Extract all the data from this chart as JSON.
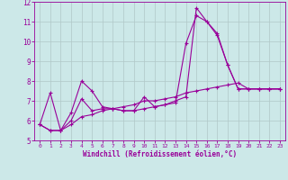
{
  "xlabel": "Windchill (Refroidissement éolien,°C)",
  "bg_color": "#cce8e8",
  "grid_color": "#b0c8c8",
  "line_color": "#990099",
  "xlim": [
    -0.5,
    23.5
  ],
  "ylim": [
    5,
    12
  ],
  "yticks": [
    5,
    6,
    7,
    8,
    9,
    10,
    11,
    12
  ],
  "xticks": [
    0,
    1,
    2,
    3,
    4,
    5,
    6,
    7,
    8,
    9,
    10,
    11,
    12,
    13,
    14,
    15,
    16,
    17,
    18,
    19,
    20,
    21,
    22,
    23
  ],
  "line1_x": [
    0,
    1,
    2,
    3,
    4,
    5,
    6,
    7,
    8,
    9,
    10,
    11,
    12,
    13,
    14,
    15,
    16,
    17,
    18,
    19,
    20,
    21,
    22,
    23
  ],
  "line1_y": [
    5.8,
    7.4,
    5.5,
    6.4,
    8.0,
    7.5,
    6.7,
    6.6,
    6.5,
    6.5,
    7.2,
    6.7,
    6.8,
    6.9,
    9.9,
    11.3,
    11.0,
    10.4,
    8.8,
    7.6,
    7.6,
    7.6,
    7.6,
    7.6
  ],
  "line2_x": [
    0,
    1,
    2,
    3,
    4,
    5,
    6,
    7,
    8,
    9,
    10,
    11,
    12,
    13,
    14,
    15,
    16,
    17,
    18,
    19,
    20,
    21,
    22,
    23
  ],
  "line2_y": [
    5.8,
    5.5,
    5.5,
    5.8,
    6.2,
    6.3,
    6.5,
    6.6,
    6.7,
    6.8,
    7.0,
    7.0,
    7.1,
    7.2,
    7.4,
    7.5,
    7.6,
    7.7,
    7.8,
    7.9,
    7.6,
    7.6,
    7.6,
    7.6
  ],
  "line3_x": [
    0,
    1,
    2,
    3,
    4,
    5,
    6,
    7,
    8,
    9,
    10,
    11,
    12,
    13,
    14,
    15,
    16,
    17,
    18,
    19,
    20,
    21,
    22,
    23
  ],
  "line3_y": [
    5.8,
    5.5,
    5.5,
    6.0,
    7.1,
    6.5,
    6.6,
    6.6,
    6.5,
    6.5,
    6.6,
    6.7,
    6.8,
    7.0,
    7.2,
    11.7,
    11.0,
    10.3,
    8.8,
    7.6,
    7.6,
    7.6,
    7.6,
    7.6
  ],
  "xlabel_fontsize": 5.5,
  "tick_fontsize_x": 4.5,
  "tick_fontsize_y": 5.5,
  "lw": 0.8,
  "marker_size": 2.5
}
